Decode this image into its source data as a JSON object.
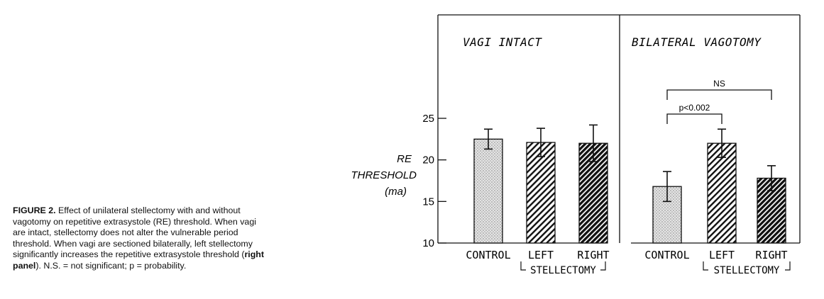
{
  "caption": {
    "label": "FIGURE 2.",
    "text_a": " Effect of unilateral stellectomy with and without vagotomy on repetitive extrasystole (RE) threshold. When vagi are intact, stellectomy does not alter the vulnerable period threshold. When vagi are sectioned bilaterally, left stellectomy significantly increases the repetitive extrasystole threshold (",
    "text_bold": "right panel",
    "text_b": "). N.S. = not significant; p = probability."
  },
  "colors": {
    "control_fill": "#d9d9d9",
    "left_hatch": "#111111",
    "right_hatch": "#111111",
    "line": "#111111"
  },
  "chart_data": {
    "type": "bar",
    "ylabel": [
      "RE",
      "THRESHOLD",
      "(ma)"
    ],
    "ylim": [
      10,
      25
    ],
    "yticks": [
      10,
      15,
      20,
      25
    ],
    "group_label": "STELLECTOMY",
    "panels": [
      {
        "title": "VAGI INTACT",
        "categories": [
          "CONTROL",
          "LEFT",
          "RIGHT"
        ],
        "values": [
          22.5,
          22.1,
          22.0
        ],
        "errors": [
          1.2,
          1.7,
          2.2
        ],
        "fills": [
          "dots",
          "hatch-light",
          "hatch-dense"
        ],
        "brackets": []
      },
      {
        "title": "BILATERAL VAGOTOMY",
        "categories": [
          "CONTROL",
          "LEFT",
          "RIGHT"
        ],
        "values": [
          16.8,
          22.0,
          17.8
        ],
        "errors": [
          1.8,
          1.7,
          1.5
        ],
        "fills": [
          "dots",
          "hatch-light",
          "hatch-dense"
        ],
        "brackets": [
          {
            "from": 0,
            "to": 1,
            "label": "p<0.002",
            "level": 1
          },
          {
            "from": 0,
            "to": 2,
            "label": "NS",
            "level": 2
          }
        ]
      }
    ]
  }
}
